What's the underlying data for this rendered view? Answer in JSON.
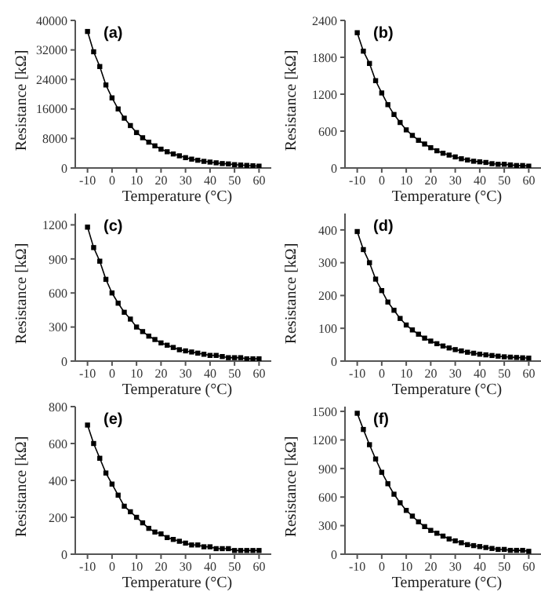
{
  "chart_data": [
    {
      "type": "line",
      "marker": "square",
      "line_style": "solid",
      "xlabel": "Temperature (°C)",
      "ylabel": "Resistance [kΩ]",
      "annotations": [
        "(a)"
      ],
      "xlim": [
        -15,
        65
      ],
      "xticks": [
        -10,
        0,
        10,
        20,
        30,
        40,
        50,
        60
      ],
      "ylim": [
        0,
        40000
      ],
      "yticks": [
        0,
        8000,
        16000,
        24000,
        32000,
        40000
      ],
      "x": [
        -10,
        -7.5,
        -5,
        -2.5,
        0,
        2.5,
        5,
        7.5,
        10,
        12.5,
        15,
        17.5,
        20,
        22.5,
        25,
        27.5,
        30,
        32.5,
        35,
        37.5,
        40,
        42.5,
        45,
        47.5,
        50,
        52.5,
        55,
        57.5,
        60
      ],
      "series": [
        {
          "color": "#000000",
          "values": [
            37000,
            31500,
            27500,
            22500,
            19000,
            16000,
            13500,
            11500,
            9600,
            8200,
            7000,
            6000,
            5100,
            4400,
            3800,
            3300,
            2800,
            2400,
            2100,
            1800,
            1600,
            1400,
            1200,
            1100,
            900,
            800,
            700,
            600,
            500
          ]
        }
      ]
    },
    {
      "type": "line",
      "marker": "square",
      "line_style": "solid",
      "xlabel": "Temperature (°C)",
      "ylabel": "Resistance [kΩ]",
      "annotations": [
        "(b)"
      ],
      "xlim": [
        -15,
        65
      ],
      "xticks": [
        -10,
        0,
        10,
        20,
        30,
        40,
        50,
        60
      ],
      "ylim": [
        0,
        2400
      ],
      "yticks": [
        0,
        600,
        1200,
        1800,
        2400
      ],
      "x": [
        -10,
        -7.5,
        -5,
        -2.5,
        0,
        2.5,
        5,
        7.5,
        10,
        12.5,
        15,
        17.5,
        20,
        22.5,
        25,
        27.5,
        30,
        32.5,
        35,
        37.5,
        40,
        42.5,
        45,
        47.5,
        50,
        52.5,
        55,
        57.5,
        60
      ],
      "series": [
        {
          "color": "#000000",
          "values": [
            2200,
            1900,
            1700,
            1420,
            1220,
            1030,
            870,
            740,
            620,
            530,
            450,
            390,
            330,
            280,
            240,
            210,
            180,
            150,
            130,
            110,
            100,
            90,
            70,
            60,
            60,
            50,
            40,
            40,
            30
          ]
        }
      ]
    },
    {
      "type": "line",
      "marker": "square",
      "line_style": "solid",
      "xlabel": "Temperature (°C)",
      "ylabel": "Resistance [kΩ]",
      "annotations": [
        "(c)"
      ],
      "xlim": [
        -15,
        65
      ],
      "xticks": [
        -10,
        0,
        10,
        20,
        30,
        40,
        50,
        60
      ],
      "ylim": [
        0,
        1300
      ],
      "yticks": [
        0,
        300,
        600,
        900,
        1200
      ],
      "x": [
        -10,
        -7.5,
        -5,
        -2.5,
        0,
        2.5,
        5,
        7.5,
        10,
        12.5,
        15,
        17.5,
        20,
        22.5,
        25,
        27.5,
        30,
        32.5,
        35,
        37.5,
        40,
        42.5,
        45,
        47.5,
        50,
        52.5,
        55,
        57.5,
        60
      ],
      "series": [
        {
          "color": "#000000",
          "values": [
            1180,
            1000,
            880,
            720,
            600,
            510,
            430,
            370,
            300,
            260,
            220,
            190,
            160,
            140,
            120,
            100,
            90,
            80,
            70,
            60,
            50,
            50,
            40,
            30,
            30,
            30,
            20,
            20,
            20
          ]
        }
      ]
    },
    {
      "type": "line",
      "marker": "square",
      "line_style": "solid",
      "xlabel": "Temperature (°C)",
      "ylabel": "Resistance [kΩ]",
      "annotations": [
        "(d)"
      ],
      "xlim": [
        -15,
        65
      ],
      "xticks": [
        -10,
        0,
        10,
        20,
        30,
        40,
        50,
        60
      ],
      "ylim": [
        0,
        450
      ],
      "yticks": [
        0,
        100,
        200,
        300,
        400
      ],
      "x": [
        -10,
        -7.5,
        -5,
        -2.5,
        0,
        2.5,
        5,
        7.5,
        10,
        12.5,
        15,
        17.5,
        20,
        22.5,
        25,
        27.5,
        30,
        32.5,
        35,
        37.5,
        40,
        42.5,
        45,
        47.5,
        50,
        52.5,
        55,
        57.5,
        60
      ],
      "series": [
        {
          "color": "#000000",
          "values": [
            395,
            340,
            300,
            250,
            215,
            180,
            155,
            130,
            110,
            95,
            82,
            70,
            61,
            53,
            46,
            40,
            35,
            31,
            27,
            24,
            21,
            19,
            17,
            15,
            13,
            12,
            11,
            10,
            9
          ]
        }
      ]
    },
    {
      "type": "line",
      "marker": "square",
      "line_style": "solid",
      "xlabel": "Temperature (°C)",
      "ylabel": "Resistance [kΩ]",
      "annotations": [
        "(e)"
      ],
      "xlim": [
        -15,
        65
      ],
      "xticks": [
        -10,
        0,
        10,
        20,
        30,
        40,
        50,
        60
      ],
      "ylim": [
        0,
        800
      ],
      "yticks": [
        0,
        200,
        400,
        600,
        800
      ],
      "x": [
        -10,
        -7.5,
        -5,
        -2.5,
        0,
        2.5,
        5,
        7.5,
        10,
        12.5,
        15,
        17.5,
        20,
        22.5,
        25,
        27.5,
        30,
        32.5,
        35,
        37.5,
        40,
        42.5,
        45,
        47.5,
        50,
        52.5,
        55,
        57.5,
        60
      ],
      "series": [
        {
          "color": "#000000",
          "values": [
            700,
            600,
            520,
            440,
            380,
            320,
            260,
            230,
            200,
            170,
            140,
            120,
            110,
            90,
            80,
            70,
            60,
            50,
            50,
            40,
            40,
            30,
            30,
            30,
            20,
            20,
            20,
            20,
            20
          ]
        }
      ]
    },
    {
      "type": "line",
      "marker": "square",
      "line_style": "solid",
      "xlabel": "Temperature (°C)",
      "ylabel": "Resistance [kΩ]",
      "annotations": [
        "(f)"
      ],
      "xlim": [
        -15,
        65
      ],
      "xticks": [
        -10,
        0,
        10,
        20,
        30,
        40,
        50,
        60
      ],
      "ylim": [
        0,
        1550
      ],
      "yticks": [
        0,
        300,
        600,
        900,
        1200,
        1500
      ],
      "x": [
        -10,
        -7.5,
        -5,
        -2.5,
        0,
        2.5,
        5,
        7.5,
        10,
        12.5,
        15,
        17.5,
        20,
        22.5,
        25,
        27.5,
        30,
        32.5,
        35,
        37.5,
        40,
        42.5,
        45,
        47.5,
        50,
        52.5,
        55,
        57.5,
        60
      ],
      "series": [
        {
          "color": "#000000",
          "values": [
            1480,
            1310,
            1150,
            1000,
            860,
            740,
            630,
            540,
            460,
            400,
            340,
            290,
            250,
            220,
            190,
            160,
            140,
            120,
            100,
            90,
            80,
            70,
            60,
            50,
            50,
            40,
            40,
            40,
            30
          ]
        }
      ]
    }
  ]
}
